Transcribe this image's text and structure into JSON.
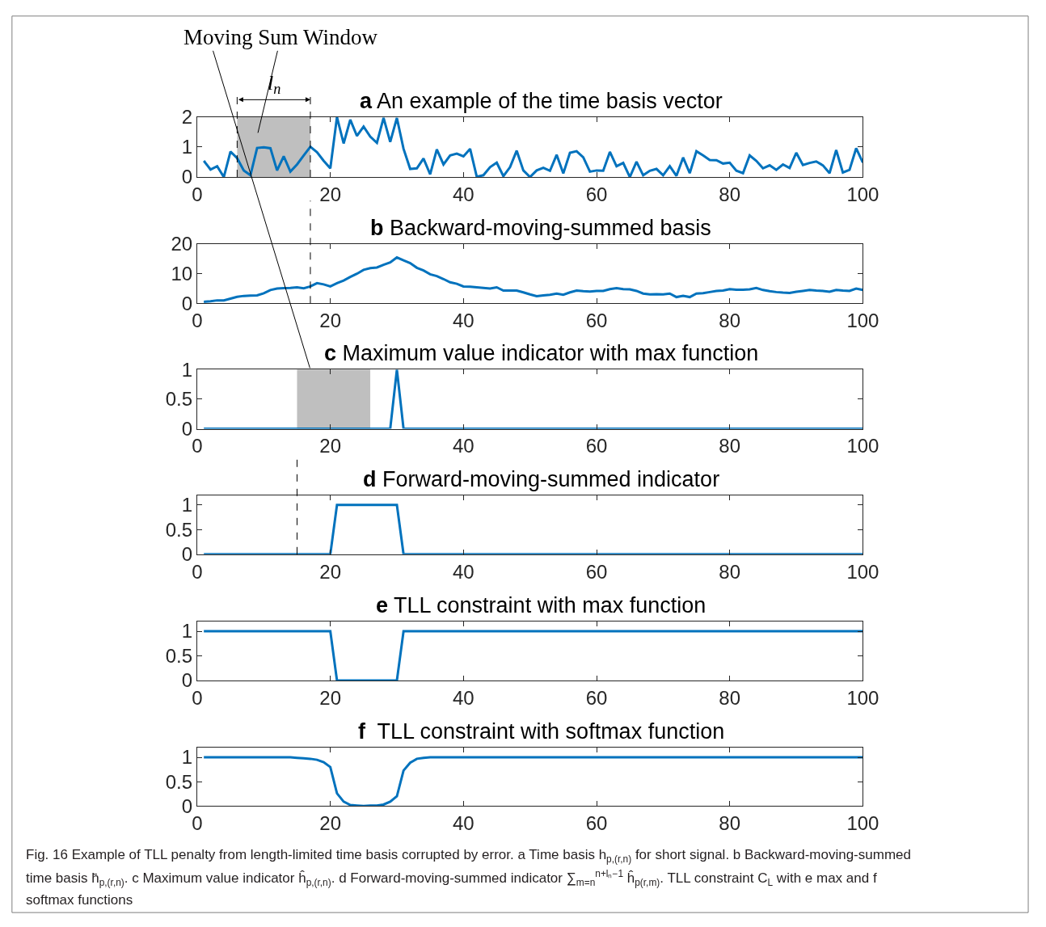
{
  "chart_data": [
    {
      "type": "line",
      "title": "a An example of the time basis vector",
      "xlim": [
        0,
        100
      ],
      "xticks": [
        0,
        20,
        40,
        60,
        80,
        100
      ],
      "ylim": [
        0,
        2
      ],
      "yticks": [
        0,
        1,
        2
      ],
      "x": [
        1,
        2,
        3,
        4,
        5,
        6,
        7,
        8,
        9,
        10,
        11,
        12,
        13,
        14,
        15,
        16,
        17,
        18,
        19,
        20,
        21,
        22,
        23,
        24,
        25,
        26,
        27,
        28,
        29,
        30,
        31,
        32,
        33,
        34,
        35,
        36,
        37,
        38,
        39,
        40,
        41,
        42,
        43,
        44,
        45,
        46,
        47,
        48,
        49,
        50,
        51,
        52,
        53,
        54,
        55,
        56,
        57,
        58,
        59,
        60,
        61,
        62,
        63,
        64,
        65,
        66,
        67,
        68,
        69,
        70,
        71,
        72,
        73,
        74,
        75,
        76,
        77,
        78,
        79,
        80,
        81,
        82,
        83,
        84,
        85,
        86,
        87,
        88,
        89,
        90,
        91,
        92,
        93,
        94,
        95,
        96,
        97,
        98,
        99,
        100
      ],
      "series": [
        {
          "color": "#0072bd",
          "values": [
            0.54,
            0.25,
            0.36,
            0,
            0.85,
            0.63,
            0.22,
            0.06,
            0.97,
            0.99,
            0.96,
            0.22,
            0.69,
            0.18,
            0.42,
            0.72,
            1.01,
            0.83,
            0.54,
            0.29,
            2.0,
            1.12,
            1.91,
            1.37,
            1.68,
            1.35,
            1.14,
            1.97,
            1.17,
            1.97,
            0.94,
            0.27,
            0.29,
            0.62,
            0.09,
            0.92,
            0.42,
            0.72,
            0.78,
            0.69,
            0.94,
            0.01,
            0.06,
            0.33,
            0.48,
            0.03,
            0.33,
            0.88,
            0.22,
            0,
            0.22,
            0.31,
            0.21,
            0.74,
            0.12,
            0.81,
            0.86,
            0.66,
            0.18,
            0.22,
            0.21,
            0.84,
            0.36,
            0.47,
            0,
            0.51,
            0.06,
            0.21,
            0.27,
            0.06,
            0.36,
            0.04,
            0.65,
            0.13,
            0.86,
            0.72,
            0.57,
            0.56,
            0.45,
            0.48,
            0.21,
            0.13,
            0.72,
            0.54,
            0.29,
            0.39,
            0.24,
            0.42,
            0.3,
            0.81,
            0.4,
            0.47,
            0.52,
            0.39,
            0.13,
            0.9,
            0.15,
            0.24,
            0.96,
            0.48
          ]
        }
      ],
      "bands": [
        {
          "axis": "x",
          "from": 6,
          "to": 17,
          "color": "#bfbfbf"
        }
      ],
      "ref_lines": [
        {
          "axis": "x",
          "value": 6,
          "line_style": "dashed"
        },
        {
          "axis": "x",
          "value": 17,
          "line_style": "dashed"
        }
      ],
      "annotations": [
        "Moving Sum Window",
        "l$_{n}$"
      ]
    },
    {
      "type": "line",
      "title": "b Backward-moving-summed basis",
      "xlim": [
        0,
        100
      ],
      "xticks": [
        0,
        20,
        40,
        60,
        80,
        100
      ],
      "ylim": [
        0,
        20
      ],
      "yticks": [
        0,
        10,
        20
      ],
      "x": [
        1,
        2,
        3,
        4,
        5,
        6,
        7,
        8,
        9,
        10,
        11,
        12,
        13,
        14,
        15,
        16,
        17,
        18,
        19,
        20,
        21,
        22,
        23,
        24,
        25,
        26,
        27,
        28,
        29,
        30,
        31,
        32,
        33,
        34,
        35,
        36,
        37,
        38,
        39,
        40,
        41,
        42,
        43,
        44,
        45,
        46,
        47,
        48,
        49,
        50,
        51,
        52,
        53,
        54,
        55,
        56,
        57,
        58,
        59,
        60,
        61,
        62,
        63,
        64,
        65,
        66,
        67,
        68,
        69,
        70,
        71,
        72,
        73,
        74,
        75,
        76,
        77,
        78,
        79,
        80,
        81,
        82,
        83,
        84,
        85,
        86,
        87,
        88,
        89,
        90,
        91,
        92,
        93,
        94,
        95,
        96,
        97,
        98,
        99,
        100
      ],
      "series": [
        {
          "color": "#0072bd",
          "values": [
            0.5,
            0.7,
            1.0,
            1.0,
            1.6,
            2.2,
            2.5,
            2.6,
            2.7,
            3.4,
            4.5,
            5.0,
            5.1,
            5.2,
            5.4,
            5.1,
            5.7,
            6.8,
            6.4,
            5.7,
            6.8,
            7.7,
            8.9,
            10.0,
            11.3,
            11.9,
            12.1,
            13.0,
            13.8,
            15.5,
            14.5,
            13.6,
            12.0,
            11.1,
            9.8,
            9.2,
            8.2,
            7.1,
            6.6,
            5.7,
            5.6,
            5.4,
            5.2,
            5.0,
            5.4,
            4.3,
            4.3,
            4.3,
            3.7,
            3.0,
            2.4,
            2.7,
            2.9,
            3.3,
            2.9,
            3.7,
            4.3,
            4.1,
            4.0,
            4.2,
            4.2,
            4.8,
            5.1,
            4.8,
            4.7,
            4.2,
            3.3,
            3.0,
            3.1,
            3.0,
            3.3,
            2.1,
            2.5,
            2.1,
            3.3,
            3.4,
            3.8,
            4.2,
            4.3,
            4.8,
            4.6,
            4.6,
            4.7,
            5.2,
            4.5,
            4.1,
            3.8,
            3.6,
            3.5,
            3.9,
            4.2,
            4.5,
            4.3,
            4.2,
            3.9,
            4.5,
            4.3,
            4.2,
            5.0,
            4.5
          ]
        }
      ],
      "ref_lines": [
        {
          "axis": "x",
          "value": 17,
          "line_style": "dashed"
        }
      ]
    },
    {
      "type": "line",
      "title": "c Maximum value indicator with max function",
      "xlim": [
        0,
        100
      ],
      "xticks": [
        0,
        20,
        40,
        60,
        80,
        100
      ],
      "ylim": [
        0,
        1
      ],
      "yticks": [
        0,
        0.5,
        1
      ],
      "x": [
        1,
        2,
        3,
        4,
        5,
        6,
        7,
        8,
        9,
        10,
        11,
        12,
        13,
        14,
        15,
        16,
        17,
        18,
        19,
        20,
        21,
        22,
        23,
        24,
        25,
        26,
        27,
        28,
        29,
        30,
        31,
        32,
        33,
        34,
        35,
        36,
        37,
        38,
        39,
        40,
        41,
        42,
        43,
        44,
        45,
        46,
        47,
        48,
        49,
        50,
        51,
        52,
        53,
        54,
        55,
        56,
        57,
        58,
        59,
        60,
        61,
        62,
        63,
        64,
        65,
        66,
        67,
        68,
        69,
        70,
        71,
        72,
        73,
        74,
        75,
        76,
        77,
        78,
        79,
        80,
        81,
        82,
        83,
        84,
        85,
        86,
        87,
        88,
        89,
        90,
        91,
        92,
        93,
        94,
        95,
        96,
        97,
        98,
        99,
        100
      ],
      "series": [
        {
          "color": "#0072bd",
          "values": [
            0,
            0,
            0,
            0,
            0,
            0,
            0,
            0,
            0,
            0,
            0,
            0,
            0,
            0,
            0,
            0,
            0,
            0,
            0,
            0,
            0,
            0,
            0,
            0,
            0,
            0,
            0,
            0,
            0,
            1,
            0,
            0,
            0,
            0,
            0,
            0,
            0,
            0,
            0,
            0,
            0,
            0,
            0,
            0,
            0,
            0,
            0,
            0,
            0,
            0,
            0,
            0,
            0,
            0,
            0,
            0,
            0,
            0,
            0,
            0,
            0,
            0,
            0,
            0,
            0,
            0,
            0,
            0,
            0,
            0,
            0,
            0,
            0,
            0,
            0,
            0,
            0,
            0,
            0,
            0,
            0,
            0,
            0,
            0,
            0,
            0,
            0,
            0,
            0,
            0,
            0,
            0,
            0,
            0,
            0,
            0,
            0,
            0,
            0,
            0
          ]
        }
      ],
      "bands": [
        {
          "axis": "x",
          "from": 15,
          "to": 26,
          "color": "#bfbfbf"
        }
      ]
    },
    {
      "type": "line",
      "title": "d Forward-moving-summed indicator",
      "xlim": [
        0,
        100
      ],
      "xticks": [
        0,
        20,
        40,
        60,
        80,
        100
      ],
      "ylim": [
        0,
        1.2
      ],
      "yticks": [
        0,
        0.5,
        1
      ],
      "x": [
        1,
        2,
        3,
        4,
        5,
        6,
        7,
        8,
        9,
        10,
        11,
        12,
        13,
        14,
        15,
        16,
        17,
        18,
        19,
        20,
        21,
        22,
        23,
        24,
        25,
        26,
        27,
        28,
        29,
        30,
        31,
        32,
        33,
        34,
        35,
        36,
        37,
        38,
        39,
        40,
        41,
        42,
        43,
        44,
        45,
        46,
        47,
        48,
        49,
        50,
        51,
        52,
        53,
        54,
        55,
        56,
        57,
        58,
        59,
        60,
        61,
        62,
        63,
        64,
        65,
        66,
        67,
        68,
        69,
        70,
        71,
        72,
        73,
        74,
        75,
        76,
        77,
        78,
        79,
        80,
        81,
        82,
        83,
        84,
        85,
        86,
        87,
        88,
        89,
        90,
        91,
        92,
        93,
        94,
        95,
        96,
        97,
        98,
        99,
        100
      ],
      "series": [
        {
          "color": "#0072bd",
          "values": [
            0,
            0,
            0,
            0,
            0,
            0,
            0,
            0,
            0,
            0,
            0,
            0,
            0,
            0,
            0,
            0,
            0,
            0,
            0,
            0,
            1,
            1,
            1,
            1,
            1,
            1,
            1,
            1,
            1,
            1,
            0,
            0,
            0,
            0,
            0,
            0,
            0,
            0,
            0,
            0,
            0,
            0,
            0,
            0,
            0,
            0,
            0,
            0,
            0,
            0,
            0,
            0,
            0,
            0,
            0,
            0,
            0,
            0,
            0,
            0,
            0,
            0,
            0,
            0,
            0,
            0,
            0,
            0,
            0,
            0,
            0,
            0,
            0,
            0,
            0,
            0,
            0,
            0,
            0,
            0,
            0,
            0,
            0,
            0,
            0,
            0,
            0,
            0,
            0,
            0,
            0,
            0,
            0,
            0,
            0,
            0,
            0,
            0,
            0,
            0
          ]
        }
      ],
      "ref_lines": [
        {
          "axis": "x",
          "value": 15,
          "line_style": "dashed"
        }
      ]
    },
    {
      "type": "line",
      "title": "e TLL constraint with max function",
      "xlim": [
        0,
        100
      ],
      "xticks": [
        0,
        20,
        40,
        60,
        80,
        100
      ],
      "ylim": [
        0,
        1.2
      ],
      "yticks": [
        0,
        0.5,
        1
      ],
      "x": [
        1,
        2,
        3,
        4,
        5,
        6,
        7,
        8,
        9,
        10,
        11,
        12,
        13,
        14,
        15,
        16,
        17,
        18,
        19,
        20,
        21,
        22,
        23,
        24,
        25,
        26,
        27,
        28,
        29,
        30,
        31,
        32,
        33,
        34,
        35,
        36,
        37,
        38,
        39,
        40,
        41,
        42,
        43,
        44,
        45,
        46,
        47,
        48,
        49,
        50,
        51,
        52,
        53,
        54,
        55,
        56,
        57,
        58,
        59,
        60,
        61,
        62,
        63,
        64,
        65,
        66,
        67,
        68,
        69,
        70,
        71,
        72,
        73,
        74,
        75,
        76,
        77,
        78,
        79,
        80,
        81,
        82,
        83,
        84,
        85,
        86,
        87,
        88,
        89,
        90,
        91,
        92,
        93,
        94,
        95,
        96,
        97,
        98,
        99,
        100
      ],
      "series": [
        {
          "color": "#0072bd",
          "values": [
            1,
            1,
            1,
            1,
            1,
            1,
            1,
            1,
            1,
            1,
            1,
            1,
            1,
            1,
            1,
            1,
            1,
            1,
            1,
            1,
            0,
            0,
            0,
            0,
            0,
            0,
            0,
            0,
            0,
            0,
            1,
            1,
            1,
            1,
            1,
            1,
            1,
            1,
            1,
            1,
            1,
            1,
            1,
            1,
            1,
            1,
            1,
            1,
            1,
            1,
            1,
            1,
            1,
            1,
            1,
            1,
            1,
            1,
            1,
            1,
            1,
            1,
            1,
            1,
            1,
            1,
            1,
            1,
            1,
            1,
            1,
            1,
            1,
            1,
            1,
            1,
            1,
            1,
            1,
            1,
            1,
            1,
            1,
            1,
            1,
            1,
            1,
            1,
            1,
            1,
            1,
            1,
            1,
            1,
            1,
            1,
            1,
            1,
            1,
            1
          ]
        }
      ]
    },
    {
      "type": "line",
      "title": "f  TLL constraint with softmax function",
      "xlim": [
        0,
        100
      ],
      "xticks": [
        0,
        20,
        40,
        60,
        80,
        100
      ],
      "ylim": [
        0,
        1.2
      ],
      "yticks": [
        0,
        0.5,
        1
      ],
      "x": [
        1,
        2,
        3,
        4,
        5,
        6,
        7,
        8,
        9,
        10,
        11,
        12,
        13,
        14,
        15,
        16,
        17,
        18,
        19,
        20,
        21,
        22,
        23,
        24,
        25,
        26,
        27,
        28,
        29,
        30,
        31,
        32,
        33,
        34,
        35,
        36,
        37,
        38,
        39,
        40,
        41,
        42,
        43,
        44,
        45,
        46,
        47,
        48,
        49,
        50,
        51,
        52,
        53,
        54,
        55,
        56,
        57,
        58,
        59,
        60,
        61,
        62,
        63,
        64,
        65,
        66,
        67,
        68,
        69,
        70,
        71,
        72,
        73,
        74,
        75,
        76,
        77,
        78,
        79,
        80,
        81,
        82,
        83,
        84,
        85,
        86,
        87,
        88,
        89,
        90,
        91,
        92,
        93,
        94,
        95,
        96,
        97,
        98,
        99,
        100
      ],
      "series": [
        {
          "color": "#0072bd",
          "values": [
            1,
            1,
            1,
            1,
            1,
            1,
            1,
            1,
            1,
            1,
            1,
            1,
            1,
            1,
            0.99,
            0.98,
            0.97,
            0.95,
            0.9,
            0.8,
            0.26,
            0.09,
            0.02,
            0.01,
            0,
            0.01,
            0.01,
            0.03,
            0.09,
            0.2,
            0.73,
            0.89,
            0.97,
            0.99,
            1,
            1,
            1,
            1,
            1,
            1,
            1,
            1,
            1,
            1,
            1,
            1,
            1,
            1,
            1,
            1,
            1,
            1,
            1,
            1,
            1,
            1,
            1,
            1,
            1,
            1,
            1,
            1,
            1,
            1,
            1,
            1,
            1,
            1,
            1,
            1,
            1,
            1,
            1,
            1,
            1,
            1,
            1,
            1,
            1,
            1,
            1,
            1,
            1,
            1,
            1,
            1,
            1,
            1,
            1,
            1,
            1,
            1,
            1,
            1,
            1,
            1,
            1,
            1,
            1,
            1
          ]
        }
      ],
      "annotations": [
        "Fig. 16 Example of TLL penalty from length-limited time basis corrupted by error. a Time basis h$_{p,(r,n)}$ for short signal. b Backward-moving-summed",
        "time basis h̄$_{p,(r,n)}$. c Maximum value indicator ĥ$_{p,(r,n)}$. d Forward-moving-summed indicator ∑$_{m=n}$$^{n+lₙ−1}$ ĥ$_{p(r,m)}$. TLL constraint C$_{L}$ with e max and f",
        "softmax functions"
      ]
    }
  ]
}
